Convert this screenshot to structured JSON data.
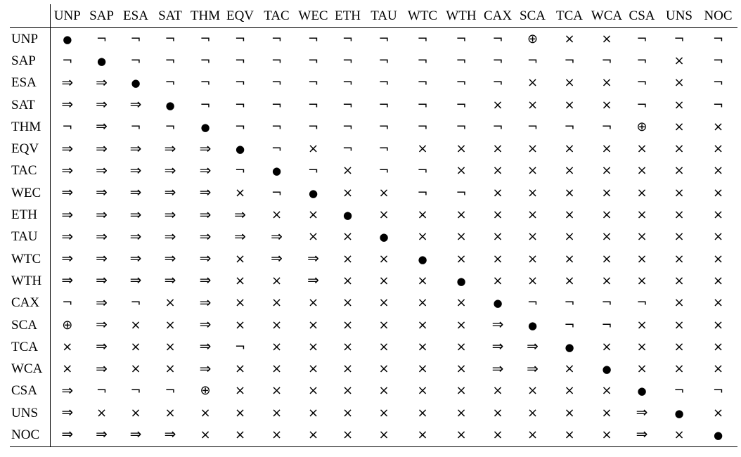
{
  "symbol_glyphs": {
    "dot": "●",
    "neg": "¬",
    "cross": "×",
    "implies": "⇒",
    "oplus": "⊕"
  },
  "columns": [
    "UNP",
    "SAP",
    "ESA",
    "SAT",
    "THM",
    "EQV",
    "TAC",
    "WEC",
    "ETH",
    "TAU",
    "WTC",
    "WTH",
    "CAX",
    "SCA",
    "TCA",
    "WCA",
    "CSA",
    "UNS",
    "NOC"
  ],
  "rows": [
    {
      "label": "UNP",
      "cells": [
        "dot",
        "neg",
        "neg",
        "neg",
        "neg",
        "neg",
        "neg",
        "neg",
        "neg",
        "neg",
        "neg",
        "neg",
        "neg",
        "oplus",
        "cross",
        "cross",
        "neg",
        "neg",
        "neg"
      ]
    },
    {
      "label": "SAP",
      "cells": [
        "neg",
        "dot",
        "neg",
        "neg",
        "neg",
        "neg",
        "neg",
        "neg",
        "neg",
        "neg",
        "neg",
        "neg",
        "neg",
        "neg",
        "neg",
        "neg",
        "neg",
        "cross",
        "neg"
      ]
    },
    {
      "label": "ESA",
      "cells": [
        "implies",
        "implies",
        "dot",
        "neg",
        "neg",
        "neg",
        "neg",
        "neg",
        "neg",
        "neg",
        "neg",
        "neg",
        "neg",
        "cross",
        "cross",
        "cross",
        "neg",
        "cross",
        "neg"
      ]
    },
    {
      "label": "SAT",
      "cells": [
        "implies",
        "implies",
        "implies",
        "dot",
        "neg",
        "neg",
        "neg",
        "neg",
        "neg",
        "neg",
        "neg",
        "neg",
        "cross",
        "cross",
        "cross",
        "cross",
        "neg",
        "cross",
        "neg"
      ]
    },
    {
      "label": "THM",
      "cells": [
        "neg",
        "implies",
        "neg",
        "neg",
        "dot",
        "neg",
        "neg",
        "neg",
        "neg",
        "neg",
        "neg",
        "neg",
        "neg",
        "neg",
        "neg",
        "neg",
        "oplus",
        "cross",
        "cross"
      ]
    },
    {
      "label": "EQV",
      "cells": [
        "implies",
        "implies",
        "implies",
        "implies",
        "implies",
        "dot",
        "neg",
        "cross",
        "neg",
        "neg",
        "cross",
        "cross",
        "cross",
        "cross",
        "cross",
        "cross",
        "cross",
        "cross",
        "cross"
      ]
    },
    {
      "label": "TAC",
      "cells": [
        "implies",
        "implies",
        "implies",
        "implies",
        "implies",
        "neg",
        "dot",
        "neg",
        "cross",
        "neg",
        "neg",
        "cross",
        "cross",
        "cross",
        "cross",
        "cross",
        "cross",
        "cross",
        "cross"
      ]
    },
    {
      "label": "WEC",
      "cells": [
        "implies",
        "implies",
        "implies",
        "implies",
        "implies",
        "cross",
        "neg",
        "dot",
        "cross",
        "cross",
        "neg",
        "neg",
        "cross",
        "cross",
        "cross",
        "cross",
        "cross",
        "cross",
        "cross"
      ]
    },
    {
      "label": "ETH",
      "cells": [
        "implies",
        "implies",
        "implies",
        "implies",
        "implies",
        "implies",
        "cross",
        "cross",
        "dot",
        "cross",
        "cross",
        "cross",
        "cross",
        "cross",
        "cross",
        "cross",
        "cross",
        "cross",
        "cross"
      ]
    },
    {
      "label": "TAU",
      "cells": [
        "implies",
        "implies",
        "implies",
        "implies",
        "implies",
        "implies",
        "implies",
        "cross",
        "cross",
        "dot",
        "cross",
        "cross",
        "cross",
        "cross",
        "cross",
        "cross",
        "cross",
        "cross",
        "cross"
      ]
    },
    {
      "label": "WTC",
      "cells": [
        "implies",
        "implies",
        "implies",
        "implies",
        "implies",
        "cross",
        "implies",
        "implies",
        "cross",
        "cross",
        "dot",
        "cross",
        "cross",
        "cross",
        "cross",
        "cross",
        "cross",
        "cross",
        "cross"
      ]
    },
    {
      "label": "WTH",
      "cells": [
        "implies",
        "implies",
        "implies",
        "implies",
        "implies",
        "cross",
        "cross",
        "implies",
        "cross",
        "cross",
        "cross",
        "dot",
        "cross",
        "cross",
        "cross",
        "cross",
        "cross",
        "cross",
        "cross"
      ]
    },
    {
      "label": "CAX",
      "cells": [
        "neg",
        "implies",
        "neg",
        "cross",
        "implies",
        "cross",
        "cross",
        "cross",
        "cross",
        "cross",
        "cross",
        "cross",
        "dot",
        "neg",
        "neg",
        "neg",
        "neg",
        "cross",
        "cross"
      ]
    },
    {
      "label": "SCA",
      "cells": [
        "oplus",
        "implies",
        "cross",
        "cross",
        "implies",
        "cross",
        "cross",
        "cross",
        "cross",
        "cross",
        "cross",
        "cross",
        "implies",
        "dot",
        "neg",
        "neg",
        "cross",
        "cross",
        "cross"
      ]
    },
    {
      "label": "TCA",
      "cells": [
        "cross",
        "implies",
        "cross",
        "cross",
        "implies",
        "neg",
        "cross",
        "cross",
        "cross",
        "cross",
        "cross",
        "cross",
        "implies",
        "implies",
        "dot",
        "cross",
        "cross",
        "cross",
        "cross"
      ]
    },
    {
      "label": "WCA",
      "cells": [
        "cross",
        "implies",
        "cross",
        "cross",
        "implies",
        "cross",
        "cross",
        "cross",
        "cross",
        "cross",
        "cross",
        "cross",
        "implies",
        "implies",
        "cross",
        "dot",
        "cross",
        "cross",
        "cross"
      ]
    },
    {
      "label": "CSA",
      "cells": [
        "implies",
        "neg",
        "neg",
        "neg",
        "oplus",
        "cross",
        "cross",
        "cross",
        "cross",
        "cross",
        "cross",
        "cross",
        "cross",
        "cross",
        "cross",
        "cross",
        "dot",
        "neg",
        "neg"
      ]
    },
    {
      "label": "UNS",
      "cells": [
        "implies",
        "cross",
        "cross",
        "cross",
        "cross",
        "cross",
        "cross",
        "cross",
        "cross",
        "cross",
        "cross",
        "cross",
        "cross",
        "cross",
        "cross",
        "cross",
        "implies",
        "dot",
        "cross"
      ]
    },
    {
      "label": "NOC",
      "cells": [
        "implies",
        "implies",
        "implies",
        "implies",
        "cross",
        "cross",
        "cross",
        "cross",
        "cross",
        "cross",
        "cross",
        "cross",
        "cross",
        "cross",
        "cross",
        "cross",
        "implies",
        "cross",
        "dot"
      ]
    }
  ]
}
